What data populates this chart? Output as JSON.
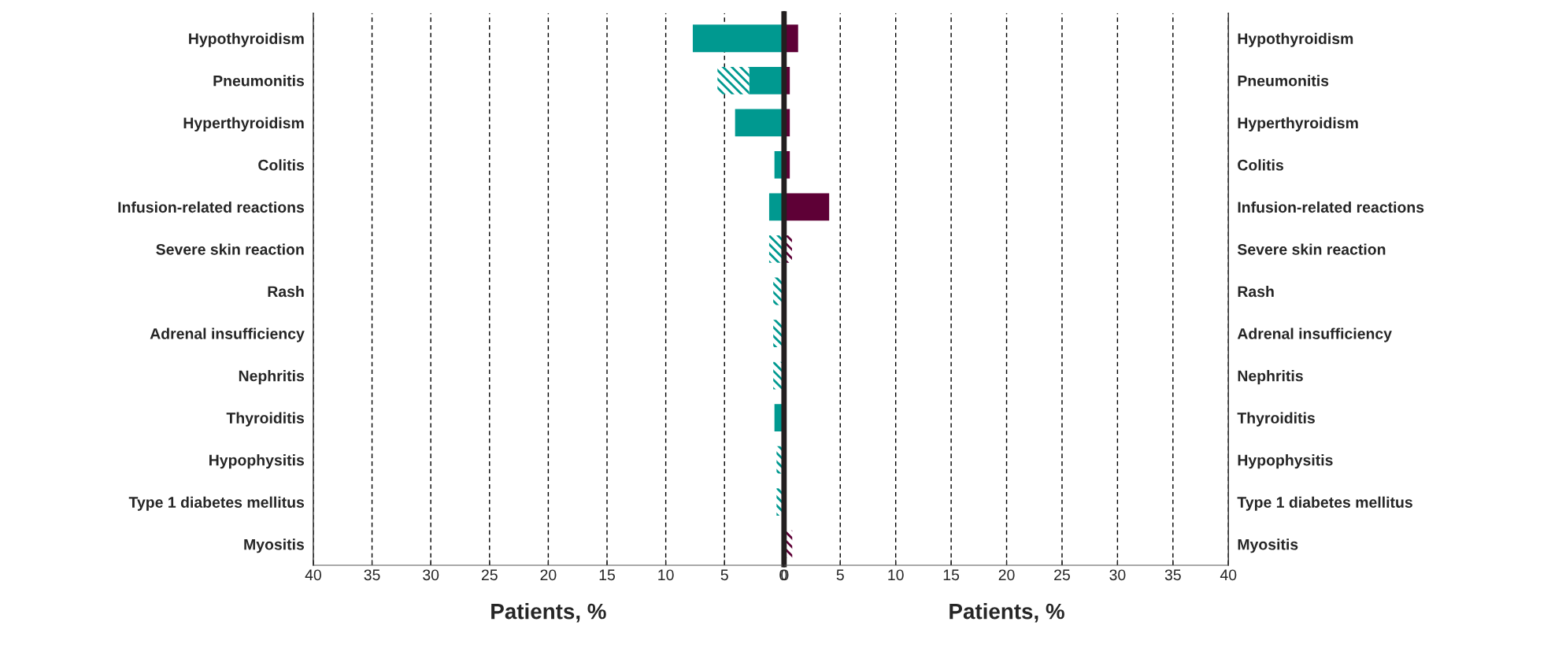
{
  "chart_data": [
    {
      "type": "bar",
      "orientation": "horizontal",
      "stacked": true,
      "xlabel": "Patients, %",
      "categories": [
        "Hypothyroidism",
        "Pneumonitis",
        "Hyperthyroidism",
        "Colitis",
        "Infusion-related reactions",
        "Severe skin reaction",
        "Rash",
        "Adrenal insufficiency",
        "Nephritis",
        "Thyroiditis",
        "Hypophysitis",
        "Type 1 diabetes mellitus",
        "Myositis"
      ],
      "series": [
        {
          "color": "#009990",
          "values": [
            7.7,
            2.9,
            4.1,
            0.75,
            1.2,
            null,
            null,
            null,
            null,
            0.75,
            null,
            null,
            null
          ]
        },
        {
          "color": "#009990",
          "values": [
            null,
            2.7,
            null,
            null,
            null,
            1.2,
            0.85,
            0.85,
            0.85,
            null,
            0.57,
            0.57,
            null
          ]
        }
      ],
      "xlim": [
        40,
        0
      ],
      "xticks": [
        0,
        5,
        10,
        15,
        20,
        25,
        30,
        35,
        40
      ],
      "grid": "x",
      "line_style": "dashed"
    },
    {
      "type": "bar",
      "orientation": "horizontal",
      "stacked": true,
      "xlabel": "Patients, %",
      "categories": [
        "Hypothyroidism",
        "Pneumonitis",
        "Hyperthyroidism",
        "Colitis",
        "Infusion-related reactions",
        "Severe skin reaction",
        "Rash",
        "Adrenal insufficiency",
        "Nephritis",
        "Thyroiditis",
        "Hypophysitis",
        "Type 1 diabetes mellitus",
        "Myositis"
      ],
      "series": [
        {
          "color": "#5e0036",
          "values": [
            1.2,
            0.45,
            0.45,
            0.45,
            4.0,
            null,
            null,
            null,
            null,
            null,
            null,
            null,
            null
          ]
        },
        {
          "color": "#5e0036",
          "values": [
            null,
            null,
            null,
            null,
            null,
            0.65,
            null,
            null,
            null,
            null,
            null,
            null,
            0.67
          ]
        }
      ],
      "xlim": [
        0,
        40
      ],
      "xticks": [
        0,
        5,
        10,
        15,
        20,
        25,
        30,
        35,
        40
      ],
      "grid": "x",
      "line_style": "dashed"
    }
  ]
}
